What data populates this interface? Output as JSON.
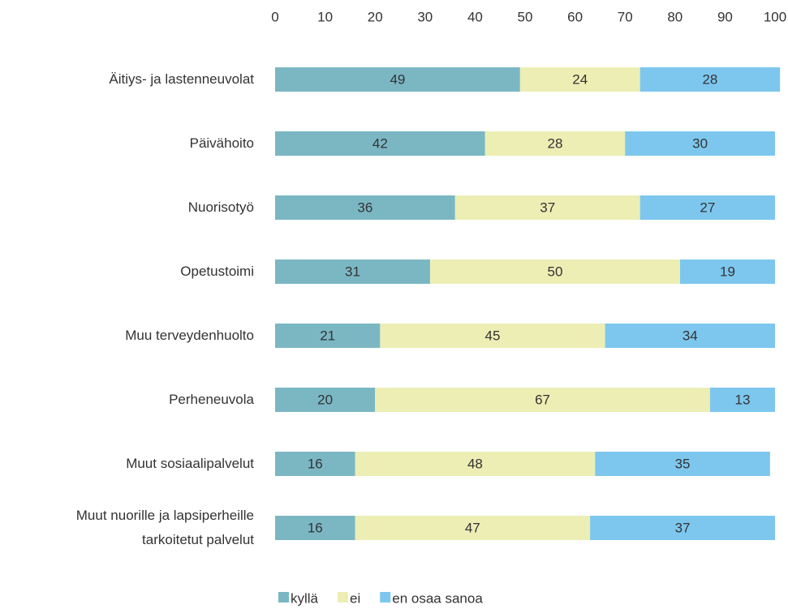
{
  "chart_data": {
    "type": "stacked-bar-horizontal",
    "categories": [
      "Äitiys- ja lastenneuvolat",
      "Päivähoito",
      "Nuorisotyö",
      "Opetustoimi",
      "Muu terveydenhuolto",
      "Perheneuvola",
      "Muut sosiaalipalvelut",
      "Muut nuorille ja lapsiperheille\ntarkoitetut palvelut"
    ],
    "series": [
      {
        "name": "kyllä",
        "color": "#7ab7c3",
        "values": [
          49,
          42,
          36,
          31,
          21,
          20,
          16,
          16
        ]
      },
      {
        "name": "ei",
        "color": "#eceeb4",
        "values": [
          24,
          28,
          37,
          50,
          45,
          67,
          48,
          47
        ]
      },
      {
        "name": "en osaa sanoa",
        "color": "#7dc7ee",
        "values": [
          28,
          30,
          27,
          19,
          34,
          13,
          35,
          37
        ]
      }
    ],
    "xlim": [
      0,
      100
    ],
    "xticks": [
      0,
      10,
      20,
      30,
      40,
      50,
      60,
      70,
      80,
      90,
      100
    ],
    "legend": "bottom"
  }
}
